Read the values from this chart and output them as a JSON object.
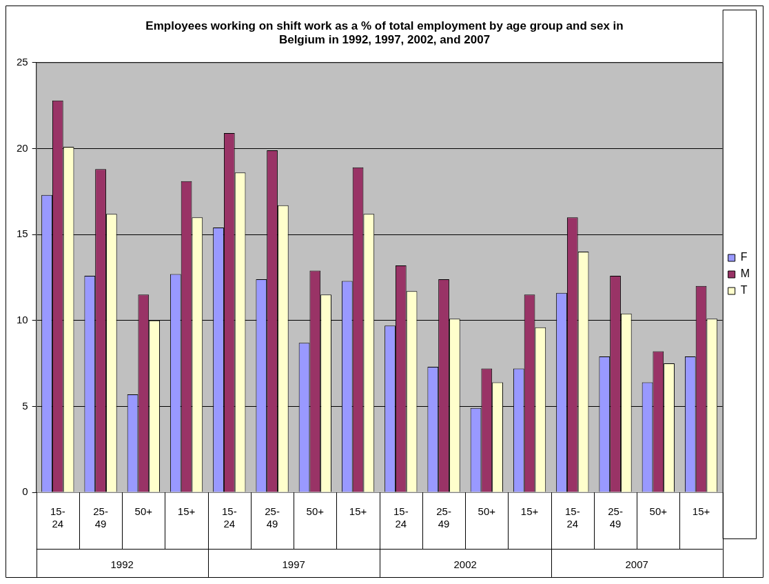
{
  "chart_data": {
    "type": "bar",
    "title": "Employees working on shift work as a % of total employment by age group and sex in Belgium in 1992, 1997, 2002, and 2007",
    "categories": [
      "15-24",
      "25-49",
      "50+",
      "15+",
      "15-24",
      "25-49",
      "50+",
      "15+",
      "15-24",
      "25-49",
      "50+",
      "15+",
      "15-24",
      "25-49",
      "50+",
      "15+"
    ],
    "series": [
      {
        "name": "F",
        "color": "#9999ff",
        "values": [
          17.3,
          12.6,
          5.7,
          12.7,
          15.4,
          12.4,
          8.7,
          12.3,
          9.7,
          7.3,
          4.9,
          7.2,
          11.6,
          7.9,
          6.4,
          7.9
        ]
      },
      {
        "name": "M",
        "color": "#993366",
        "values": [
          22.8,
          18.8,
          11.5,
          18.1,
          20.9,
          19.9,
          12.9,
          18.9,
          13.2,
          12.4,
          7.2,
          11.5,
          16.0,
          12.6,
          8.2,
          12.0
        ]
      },
      {
        "name": "T",
        "color": "#ffffcc",
        "values": [
          20.1,
          16.2,
          10.0,
          16.0,
          18.6,
          16.7,
          11.5,
          16.2,
          11.7,
          10.1,
          6.4,
          9.6,
          14.0,
          10.4,
          7.5,
          10.1
        ]
      }
    ],
    "annotations": [
      "1992",
      "1997",
      "2002",
      "2007"
    ],
    "ylim": [
      0,
      25
    ],
    "yticks": [
      0,
      5,
      10,
      15,
      20,
      25
    ],
    "grid": true,
    "legend": "right"
  }
}
